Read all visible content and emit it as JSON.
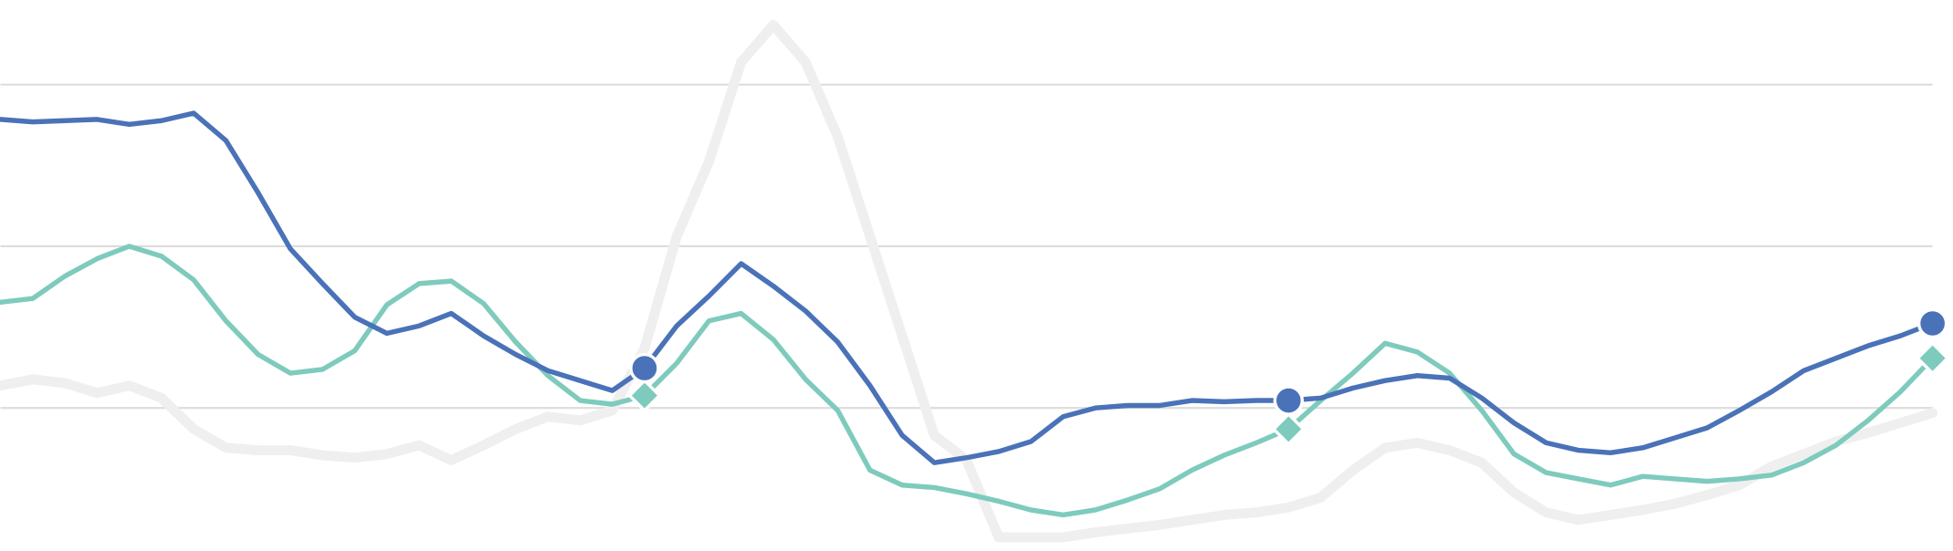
{
  "chart_data": {
    "type": "line",
    "x": [
      0,
      1,
      2,
      3,
      4,
      5,
      6,
      7,
      8,
      9,
      10,
      11,
      12,
      13,
      14,
      15,
      16,
      17,
      18,
      19,
      20,
      21,
      22,
      23,
      24,
      25,
      26,
      27,
      28,
      29,
      30,
      31,
      32,
      33,
      34,
      35,
      36,
      37,
      38,
      39,
      40,
      41,
      42,
      43,
      44,
      45,
      46,
      47,
      48,
      49,
      50,
      51,
      52,
      53,
      54,
      55,
      56,
      57,
      58,
      59,
      60
    ],
    "xlim": [
      0,
      60
    ],
    "ylim": [
      0,
      436
    ],
    "yticks": [
      112,
      242,
      372
    ],
    "grid": true,
    "highlight_x": [
      20,
      40,
      60
    ],
    "series": [
      {
        "color": "#efefef",
        "values": [
          130,
          135,
          132,
          124,
          130,
          120,
          95,
          80,
          78,
          78,
          74,
          72,
          75,
          82,
          70,
          82,
          95,
          105,
          102,
          110,
          160,
          250,
          310,
          390,
          420,
          390,
          330,
          250,
          170,
          90,
          70,
          8,
          8,
          8,
          12,
          15,
          18,
          22,
          26,
          28,
          32,
          40,
          62,
          80,
          84,
          78,
          68,
          44,
          28,
          22,
          26,
          30,
          35,
          42,
          50,
          65,
          75,
          85,
          92,
          100,
          108
        ]
      },
      {
        "color": "#7ecbbd",
        "marker": "diamond",
        "values": [
          197,
          200,
          218,
          232,
          242,
          234,
          215,
          182,
          155,
          140,
          143,
          158,
          195,
          212,
          214,
          196,
          165,
          138,
          118,
          115,
          122,
          148,
          182,
          188,
          167,
          135,
          110,
          62,
          50,
          48,
          43,
          37,
          30,
          26,
          30,
          38,
          47,
          62,
          74,
          84,
          95,
          118,
          140,
          164,
          157,
          140,
          110,
          75,
          60,
          55,
          50,
          57,
          55,
          53,
          55,
          58,
          68,
          82,
          102,
          125,
          152
        ]
      },
      {
        "color": "#4a72b8",
        "marker": "circle",
        "values": [
          344,
          342,
          343,
          344,
          340,
          343,
          349,
          327,
          285,
          240,
          212,
          185,
          172,
          178,
          188,
          170,
          155,
          142,
          134,
          126,
          144,
          178,
          202,
          228,
          210,
          190,
          165,
          130,
          90,
          68,
          72,
          77,
          85,
          105,
          112,
          114,
          114,
          118,
          117,
          118,
          118,
          120,
          128,
          134,
          138,
          136,
          120,
          100,
          84,
          78,
          76,
          80,
          88,
          96,
          110,
          125,
          142,
          152,
          162,
          170,
          180
        ]
      }
    ]
  }
}
